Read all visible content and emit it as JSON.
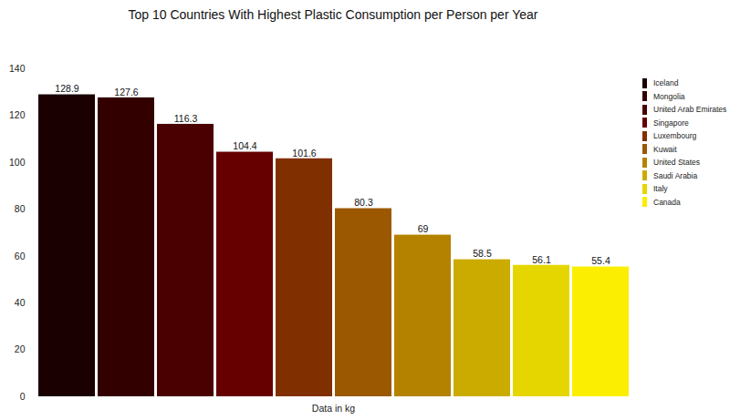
{
  "chart_data": {
    "type": "bar",
    "title": "Top 10 Countries With Highest Plastic Consumption per Person per Year",
    "xlabel": "Data in kg",
    "categories": [
      "Iceland",
      "Mongolia",
      "United Arab Emirates",
      "Singapore",
      "Luxembourg",
      "Kuwait",
      "United States",
      "Saudi Arabia",
      "Italy",
      "Canada"
    ],
    "values": [
      128.9,
      127.6,
      116.3,
      104.4,
      101.6,
      80.3,
      69,
      58.5,
      56.1,
      55.4
    ],
    "colors": [
      "#1a0000",
      "#330000",
      "#4a0000",
      "#660000",
      "#803000",
      "#9b5800",
      "#b58200",
      "#ccab00",
      "#e6d600",
      "#fcee00"
    ],
    "ylim": [
      0,
      140
    ],
    "yticks": [
      0,
      20,
      40,
      60,
      80,
      100,
      120,
      140
    ],
    "grid": false,
    "data_labels": true,
    "legend": "right",
    "tick_labels": "y"
  }
}
